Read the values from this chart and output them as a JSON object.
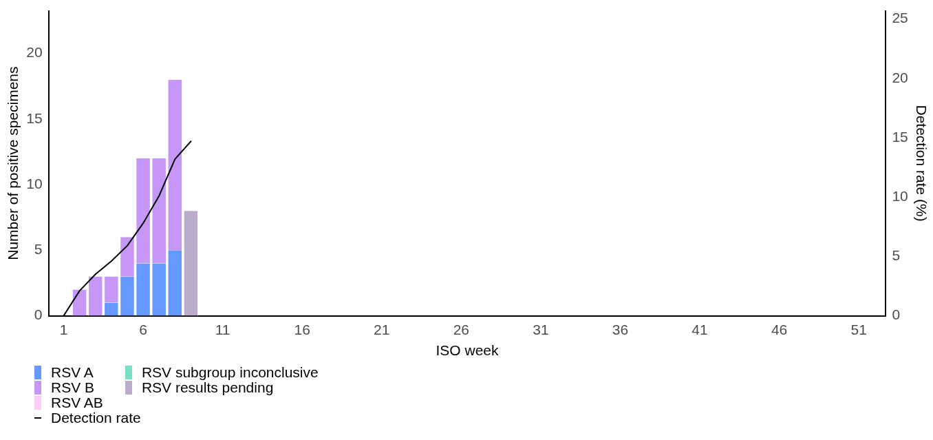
{
  "chart_data": {
    "type": "bar",
    "stacked": true,
    "xlabel": "ISO week",
    "ylabel": "Number of positive specimens",
    "y2label": "Detection rate (%)",
    "x": [
      1,
      2,
      3,
      4,
      5,
      6,
      7,
      8,
      9
    ],
    "xlim": [
      0.05,
      52.7
    ],
    "xticks": [
      1,
      6,
      11,
      16,
      21,
      26,
      31,
      36,
      41,
      46,
      51
    ],
    "ylim": [
      0,
      23.25
    ],
    "yticks": [
      0,
      5,
      10,
      15,
      20
    ],
    "y2lim": [
      0,
      25.7
    ],
    "y2ticks": [
      0,
      5,
      10,
      15,
      20,
      25
    ],
    "grid": false,
    "legend": "bottom left",
    "series": [
      {
        "name": "RSV A",
        "color": "#6699ff",
        "values": [
          0,
          0,
          0,
          1,
          3,
          4,
          4,
          5,
          0
        ]
      },
      {
        "name": "RSV B",
        "color": "#c797f7",
        "values": [
          0,
          2,
          3,
          2,
          3,
          8,
          8,
          13,
          0
        ]
      },
      {
        "name": "RSV AB",
        "color": "#ffccf5",
        "values": [
          0,
          0,
          0,
          0,
          0,
          0,
          0,
          0,
          0
        ]
      },
      {
        "name": "RSV subgroup inconclusive",
        "color": "#77e0c4",
        "values": [
          0,
          0,
          0,
          0,
          0,
          0,
          0,
          0,
          0
        ]
      },
      {
        "name": "RSV results pending",
        "color": "#bcaccc",
        "values": [
          0,
          0,
          0,
          0,
          0,
          0,
          0,
          0,
          8
        ]
      },
      {
        "name": "Detection rate",
        "type": "line",
        "axis": "y2",
        "color": "#000000",
        "marker": "none",
        "values": [
          0,
          2.1,
          3.5,
          4.6,
          5.9,
          7.8,
          10.1,
          13.2,
          14.7
        ]
      }
    ]
  }
}
